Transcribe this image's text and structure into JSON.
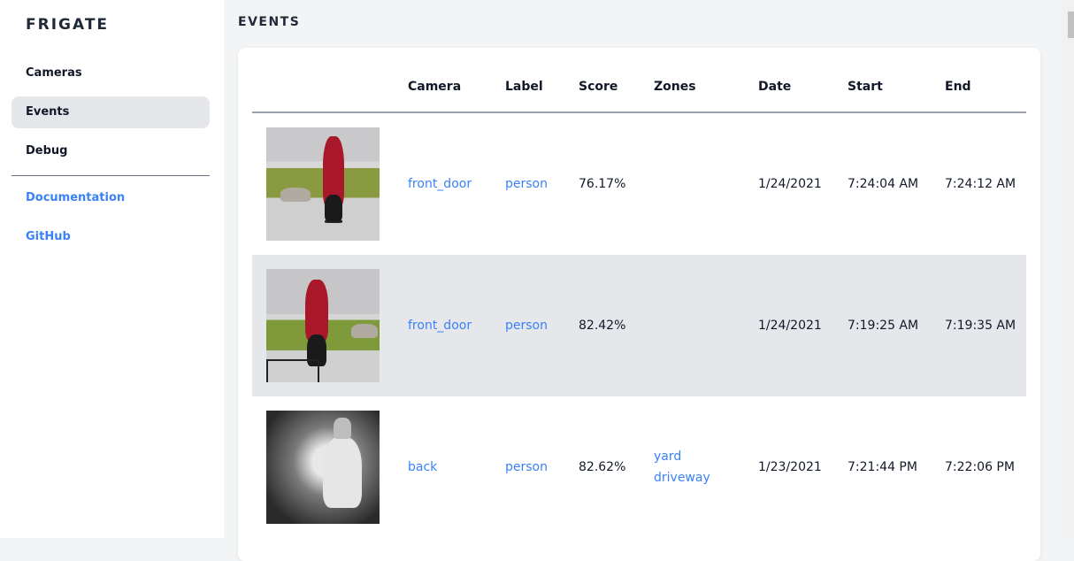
{
  "sidebar": {
    "brand": "FRIGATE",
    "items": [
      {
        "label": "Cameras"
      },
      {
        "label": "Events",
        "active": true
      },
      {
        "label": "Debug"
      }
    ],
    "links": [
      {
        "label": "Documentation"
      },
      {
        "label": "GitHub"
      }
    ]
  },
  "page_title": "EVENTS",
  "table": {
    "headers": [
      "Camera",
      "Label",
      "Score",
      "Zones",
      "Date",
      "Start",
      "End"
    ],
    "rows": [
      {
        "camera": "front_door",
        "label": "person",
        "score": "76.17%",
        "zones": [
          "",
          ""
        ],
        "date": "1/24/2021",
        "start": "7:24:04 AM",
        "end": "7:24:12 AM"
      },
      {
        "camera": "front_door",
        "label": "person",
        "score": "82.42%",
        "zones": [
          "",
          ""
        ],
        "date": "1/24/2021",
        "start": "7:19:25 AM",
        "end": "7:19:35 AM"
      },
      {
        "camera": "back",
        "label": "person",
        "score": "82.62%",
        "zones": [
          "yard",
          "driveway"
        ],
        "date": "1/23/2021",
        "start": "7:21:44 PM",
        "end": "7:22:06 PM"
      }
    ]
  },
  "colors": {
    "accent": "#3b82f6",
    "active_bg": "#e5e7eb",
    "page_bg": "#f3f4f6"
  }
}
